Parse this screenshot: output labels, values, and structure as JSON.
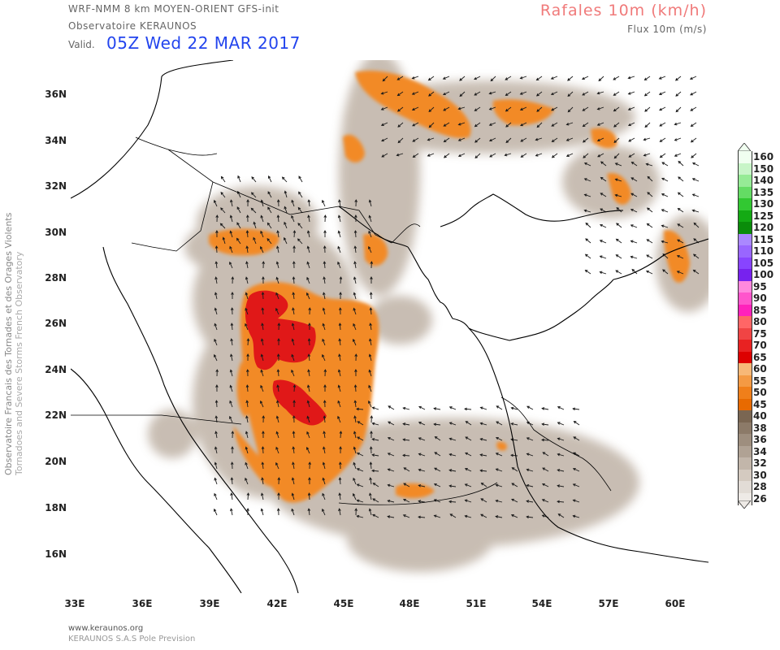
{
  "header": {
    "model": "WRF-NMM 8 km MOYEN-ORIENT  GFS-init",
    "observatory": "Observatoire KERAUNOS",
    "valid_label": "Valid.",
    "valid_time": "05Z Wed 22 MAR 2017",
    "parameter_title": "Rafales 10m (km/h)",
    "parameter_subtitle": "Flux 10m (m/s)"
  },
  "side_credit": {
    "line1": "Observatoire Francais des Tornades et des Orages Violents",
    "line2": "Tornadoes and Severe Storms French Observatory"
  },
  "footer": {
    "url": "www.keraunos.org",
    "company": "KERAUNOS S.A.S Pole Prevision"
  },
  "axes": {
    "latitudes": [
      "36N",
      "34N",
      "32N",
      "30N",
      "28N",
      "26N",
      "24N",
      "22N",
      "20N",
      "18N",
      "16N"
    ],
    "longitudes": [
      "33E",
      "36E",
      "39E",
      "42E",
      "45E",
      "48E",
      "51E",
      "54E",
      "57E",
      "60E"
    ]
  },
  "legend": {
    "values": [
      "160",
      "150",
      "140",
      "135",
      "130",
      "125",
      "120",
      "115",
      "110",
      "105",
      "100",
      "95",
      "90",
      "85",
      "80",
      "75",
      "70",
      "65",
      "60",
      "55",
      "50",
      "45",
      "40",
      "38",
      "36",
      "34",
      "32",
      "30",
      "28",
      "26"
    ],
    "colors": [
      "#f0fff0",
      "#c8f5c8",
      "#96eb96",
      "#64dc64",
      "#32c832",
      "#14aa14",
      "#0a8c0a",
      "#aa88ff",
      "#9966ff",
      "#8844ff",
      "#7722ee",
      "#ff88dd",
      "#ff55cc",
      "#ff22bb",
      "#ff6666",
      "#f04444",
      "#e82222",
      "#dd0000",
      "#f7b877",
      "#f49a44",
      "#f07f1a",
      "#e86a00",
      "#7a6652",
      "#8c7a68",
      "#9e8e7e",
      "#b0a294",
      "#c2b6aa",
      "#d4cac0",
      "#e2dcd6",
      "#eeeae6"
    ]
  }
}
